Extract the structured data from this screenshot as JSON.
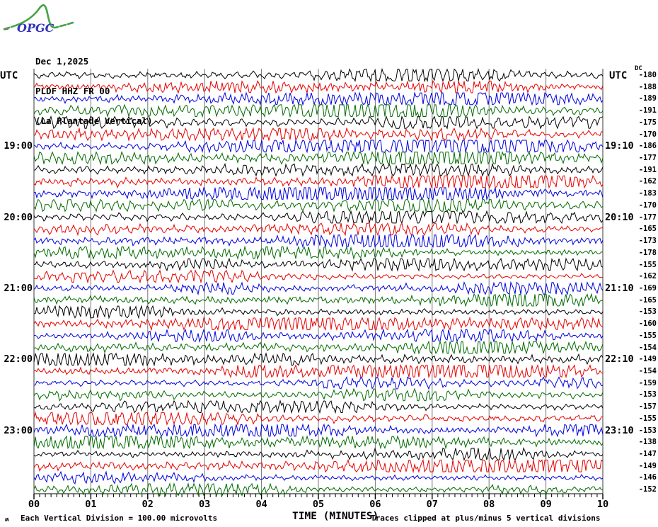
{
  "logo": {
    "text": "OPGC",
    "text_color": "#3333bb",
    "curve_color": "#44a344"
  },
  "header": {
    "date": "Dec 1,2025",
    "station": "PLDF HHZ FR 00",
    "station_desc": "(La Plantade Vertical)"
  },
  "axis_titles": {
    "left": "UTC",
    "right": "UTC",
    "dc": "DC"
  },
  "footer": {
    "glyph": "ʍ",
    "scale_note": "Each Vertical Division =  100.00 microvolts",
    "xlabel": "TIME (MINUTES)",
    "clip_note": "Traces clipped at plus/minus 5 vertical divisions"
  },
  "chart_data": {
    "type": "line",
    "title": "PLDF HHZ FR 00 (La Plantade Vertical) helicorder, Dec 1,2025",
    "xlabel": "TIME (MINUTES)",
    "x_range_minutes": [
      0,
      10
    ],
    "x_tick_labels": [
      "00",
      "01",
      "02",
      "03",
      "04",
      "05",
      "06",
      "07",
      "08",
      "09",
      "10"
    ],
    "grid": "vertical lines at every minute",
    "grid_color": "#757575",
    "trace_color_cycle": [
      "#000000",
      "#e60000",
      "#0000e0",
      "#006a00"
    ],
    "clip_divisions": 5,
    "microvolts_per_division": 100.0,
    "rows": [
      {
        "left": "",
        "right": "",
        "dc": -180
      },
      {
        "left": "",
        "right": "",
        "dc": -188
      },
      {
        "left": "",
        "right": "",
        "dc": -189
      },
      {
        "left": "",
        "right": "",
        "dc": -191
      },
      {
        "left": "",
        "right": "",
        "dc": -175
      },
      {
        "left": "",
        "right": "",
        "dc": -170
      },
      {
        "left": "19:00",
        "right": "19:10",
        "dc": -186
      },
      {
        "left": "",
        "right": "",
        "dc": -177
      },
      {
        "left": "",
        "right": "",
        "dc": -191
      },
      {
        "left": "",
        "right": "",
        "dc": -162
      },
      {
        "left": "",
        "right": "",
        "dc": -183
      },
      {
        "left": "",
        "right": "",
        "dc": -170
      },
      {
        "left": "20:00",
        "right": "20:10",
        "dc": -177
      },
      {
        "left": "",
        "right": "",
        "dc": -165
      },
      {
        "left": "",
        "right": "",
        "dc": -173
      },
      {
        "left": "",
        "right": "",
        "dc": -178
      },
      {
        "left": "",
        "right": "",
        "dc": -155
      },
      {
        "left": "",
        "right": "",
        "dc": -162
      },
      {
        "left": "21:00",
        "right": "21:10",
        "dc": -169
      },
      {
        "left": "",
        "right": "",
        "dc": -165
      },
      {
        "left": "",
        "right": "",
        "dc": -153
      },
      {
        "left": "",
        "right": "",
        "dc": -160
      },
      {
        "left": "",
        "right": "",
        "dc": -155
      },
      {
        "left": "",
        "right": "",
        "dc": -154
      },
      {
        "left": "22:00",
        "right": "22:10",
        "dc": -149
      },
      {
        "left": "",
        "right": "",
        "dc": -154
      },
      {
        "left": "",
        "right": "",
        "dc": -159
      },
      {
        "left": "",
        "right": "",
        "dc": -153
      },
      {
        "left": "",
        "right": "",
        "dc": -157
      },
      {
        "left": "",
        "right": "",
        "dc": -155
      },
      {
        "left": "23:00",
        "right": "23:10",
        "dc": -153
      },
      {
        "left": "",
        "right": "",
        "dc": -138
      },
      {
        "left": "",
        "right": "",
        "dc": -147
      },
      {
        "left": "",
        "right": "",
        "dc": -149
      },
      {
        "left": "",
        "right": "",
        "dc": -146
      },
      {
        "left": "",
        "right": "",
        "dc": -152
      }
    ]
  }
}
